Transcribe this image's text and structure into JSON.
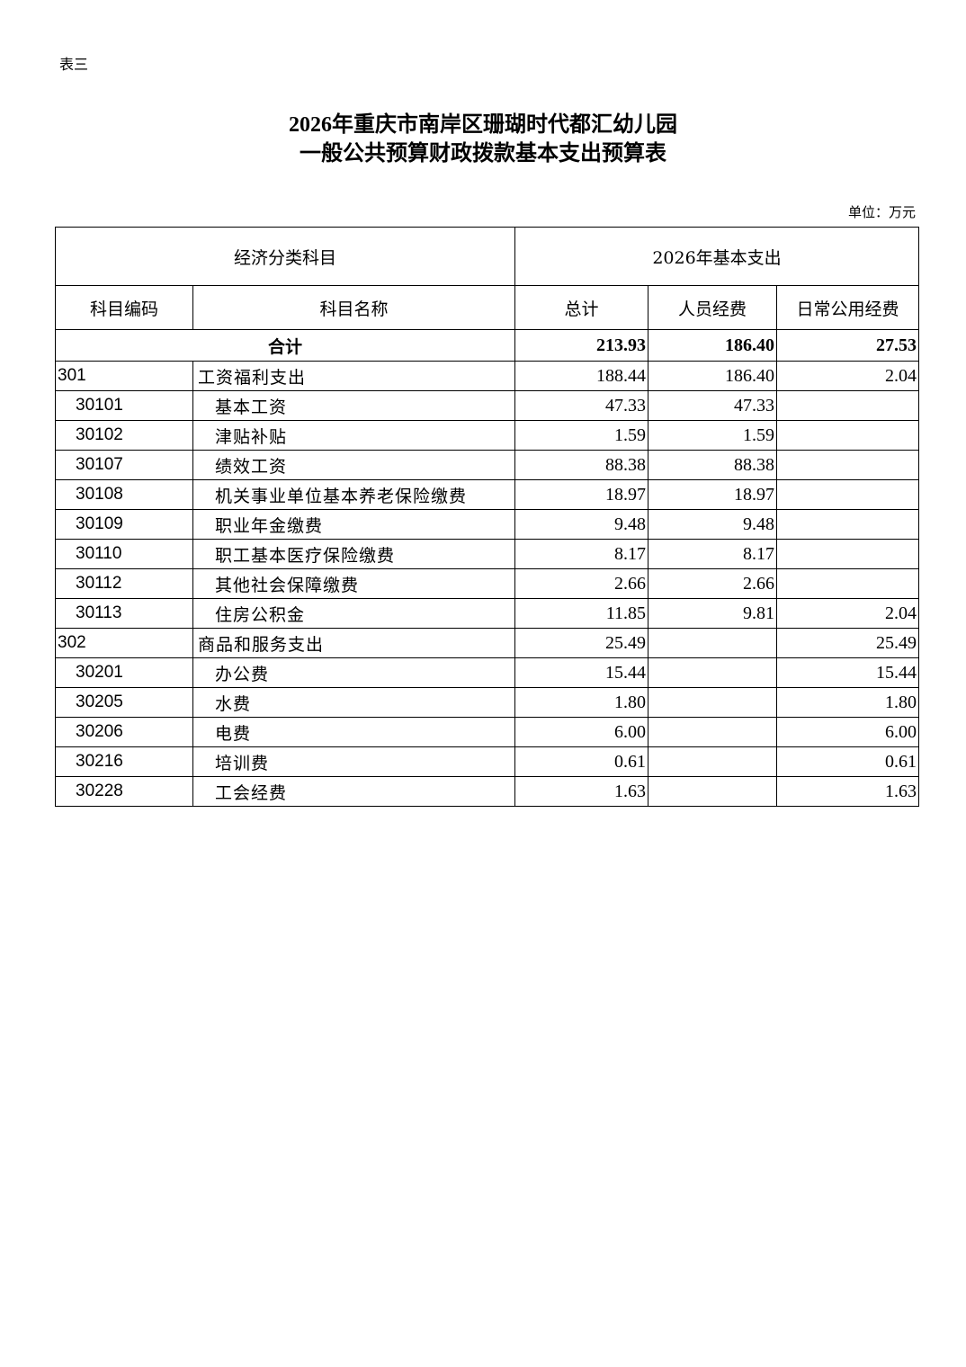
{
  "doc": {
    "tag": "表三",
    "title_line1": "2026年重庆市南岸区珊瑚时代都汇幼儿园",
    "title_line2": "一般公共预算财政拨款基本支出预算表",
    "unit": "单位：万元"
  },
  "table": {
    "header_group": {
      "left": "经济分类科目",
      "right": "2026年基本支出"
    },
    "columns": [
      "科目编码",
      "科目名称",
      "总计",
      "人员经费",
      "日常公用经费"
    ],
    "total": {
      "label": "合计",
      "total": "213.93",
      "personnel": "186.40",
      "public": "27.53"
    },
    "rows": [
      {
        "code": "301",
        "name": "工资福利支出",
        "total": "188.44",
        "personnel": "186.40",
        "public": "2.04",
        "level": 1
      },
      {
        "code": "30101",
        "name": "基本工资",
        "total": "47.33",
        "personnel": "47.33",
        "public": "",
        "level": 2
      },
      {
        "code": "30102",
        "name": "津贴补贴",
        "total": "1.59",
        "personnel": "1.59",
        "public": "",
        "level": 2
      },
      {
        "code": "30107",
        "name": "绩效工资",
        "total": "88.38",
        "personnel": "88.38",
        "public": "",
        "level": 2
      },
      {
        "code": "30108",
        "name": "机关事业单位基本养老保险缴费",
        "total": "18.97",
        "personnel": "18.97",
        "public": "",
        "level": 2
      },
      {
        "code": "30109",
        "name": "职业年金缴费",
        "total": "9.48",
        "personnel": "9.48",
        "public": "",
        "level": 2
      },
      {
        "code": "30110",
        "name": "职工基本医疗保险缴费",
        "total": "8.17",
        "personnel": "8.17",
        "public": "",
        "level": 2
      },
      {
        "code": "30112",
        "name": "其他社会保障缴费",
        "total": "2.66",
        "personnel": "2.66",
        "public": "",
        "level": 2
      },
      {
        "code": "30113",
        "name": "住房公积金",
        "total": "11.85",
        "personnel": "9.81",
        "public": "2.04",
        "level": 2
      },
      {
        "code": "302",
        "name": "商品和服务支出",
        "total": "25.49",
        "personnel": "",
        "public": "25.49",
        "level": 1
      },
      {
        "code": "30201",
        "name": "办公费",
        "total": "15.44",
        "personnel": "",
        "public": "15.44",
        "level": 2
      },
      {
        "code": "30205",
        "name": "水费",
        "total": "1.80",
        "personnel": "",
        "public": "1.80",
        "level": 2
      },
      {
        "code": "30206",
        "name": "电费",
        "total": "6.00",
        "personnel": "",
        "public": "6.00",
        "level": 2
      },
      {
        "code": "30216",
        "name": "培训费",
        "total": "0.61",
        "personnel": "",
        "public": "0.61",
        "level": 2
      },
      {
        "code": "30228",
        "name": "工会经费",
        "total": "1.63",
        "personnel": "",
        "public": "1.63",
        "level": 2
      }
    ]
  }
}
